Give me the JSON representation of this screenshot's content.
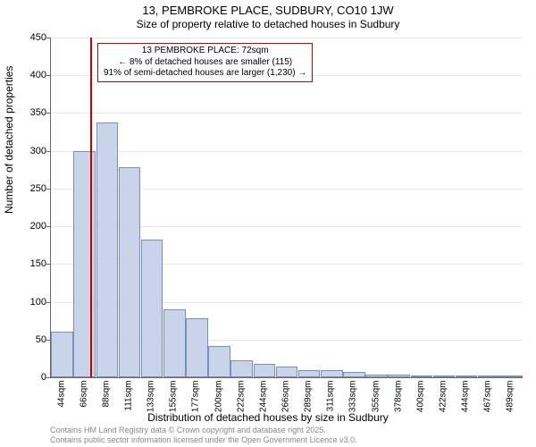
{
  "title_line1": "13, PEMBROKE PLACE, SUDBURY, CO10 1JW",
  "title_line2": "Size of property relative to detached houses in Sudbury",
  "ylabel": "Number of detached properties",
  "xlabel": "Distribution of detached houses by size in Sudbury",
  "chart": {
    "type": "histogram",
    "ylim": [
      0,
      450
    ],
    "ytick_step": 50,
    "yticks": [
      0,
      50,
      100,
      150,
      200,
      250,
      300,
      350,
      400,
      450
    ],
    "categories": [
      "44sqm",
      "66sqm",
      "88sqm",
      "111sqm",
      "133sqm",
      "155sqm",
      "177sqm",
      "200sqm",
      "222sqm",
      "244sqm",
      "266sqm",
      "289sqm",
      "311sqm",
      "333sqm",
      "355sqm",
      "378sqm",
      "400sqm",
      "422sqm",
      "444sqm",
      "467sqm",
      "489sqm"
    ],
    "values": [
      60,
      300,
      338,
      278,
      182,
      90,
      78,
      42,
      22,
      18,
      14,
      10,
      10,
      7,
      4,
      3,
      2,
      2,
      1,
      1,
      1
    ],
    "bar_fill": "#c9d4ea",
    "bar_border": "#7a8fb8",
    "grid_color": "#e8e8e8",
    "background_color": "#ffffff",
    "axis_color": "#666666",
    "reference_line_index": 1.25,
    "reference_line_color": "#cc0000"
  },
  "annotation": {
    "line1": "13 PEMBROKE PLACE: 72sqm",
    "line2": "← 8% of detached houses are smaller (115)",
    "line3": "91% of semi-detached houses are larger (1,230) →",
    "border_color": "#cc0000"
  },
  "attribution": {
    "line1": "Contains HM Land Registry data © Crown copyright and database right 2025.",
    "line2": "Contains public sector information licensed under the Open Government Licence v3.0."
  }
}
